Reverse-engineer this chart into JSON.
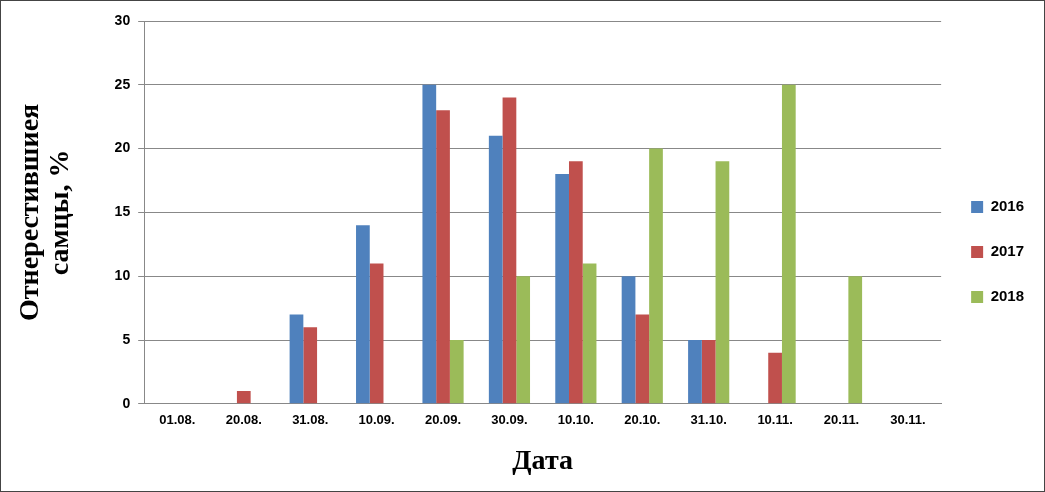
{
  "chart_data": {
    "type": "bar",
    "xlabel": "Дата",
    "ylabel": "Отнерестившиея самцы, %",
    "categories": [
      "01.08.",
      "20.08.",
      "31.08.",
      "10.09.",
      "20.09.",
      "30.09.",
      "10.10.",
      "20.10.",
      "31.10.",
      "10.11.",
      "20.11.",
      "30.11."
    ],
    "series": [
      {
        "name": "2016",
        "color": "#4f81bd",
        "values": [
          0,
          0,
          7,
          14,
          25,
          21,
          18,
          10,
          5,
          0,
          0,
          0
        ]
      },
      {
        "name": "2017",
        "color": "#c0504d",
        "values": [
          0,
          1,
          6,
          11,
          23,
          24,
          19,
          7,
          5,
          4,
          0,
          0
        ]
      },
      {
        "name": "2018",
        "color": "#9bbb59",
        "values": [
          0,
          0,
          0,
          0,
          5,
          10,
          11,
          20,
          19,
          25,
          10,
          0
        ]
      }
    ],
    "ylim": [
      0,
      30
    ],
    "yticks": [
      0,
      5,
      10,
      15,
      20,
      25,
      30
    ],
    "grid": "y",
    "legend": "right"
  }
}
